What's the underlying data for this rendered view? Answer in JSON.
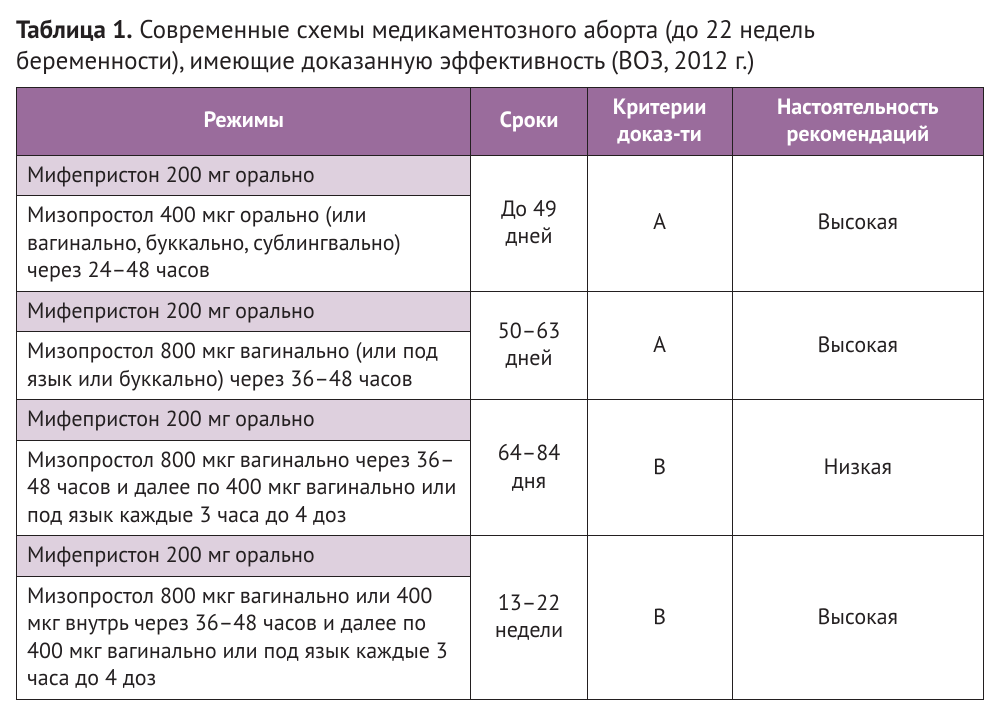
{
  "title_prefix": "Таблица 1.",
  "title_rest": " Современные схемы медикаментозного аборта (до 22 недель беременности), имеющие доказанную эффективность (ВОЗ, 2012 г.)",
  "columns": [
    "Режимы",
    "Сроки",
    "Критерии доказ-ти",
    "Настоятельность рекомендаций"
  ],
  "header_bg": "#9a6c9c",
  "header_fg": "#ffffff",
  "band_bg": "#ded0de",
  "cell_bg": "#ffffff",
  "border_color": "#231f20",
  "groups": [
    {
      "rows": [
        "Мифепристон 200 мг орально",
        "Мизопростол 400 мкг орально (или вагинально, буккально, сублингвально) через 24–48 часов"
      ],
      "term": "До 49 дней",
      "evidence": "A",
      "strength": "Высокая"
    },
    {
      "rows": [
        "Мифепристон 200 мг орально",
        "Мизопростол 800 мкг вагинально (или под язык или буккально) через 36–48 часов"
      ],
      "term": "50–63 дней",
      "evidence": "A",
      "strength": "Высокая"
    },
    {
      "rows": [
        "Мифепристон 200 мг орально",
        "Мизопростол 800 мкг вагинально через 36–48 часов и далее по 400 мкг вагинально или под язык каждые 3 часа до 4 доз"
      ],
      "term": "64–84 дня",
      "evidence": "B",
      "strength": "Низкая"
    },
    {
      "rows": [
        "Мифепристон 200 мг орально",
        "Мизопростол 800 мкг вагинально или 400 мкг внутрь через 36–48 часов и далее по 400 мкг вагинально или под язык каждые 3 часа до 4 доз"
      ],
      "term": "13–22 недели",
      "evidence": "B",
      "strength": "Высокая"
    }
  ]
}
